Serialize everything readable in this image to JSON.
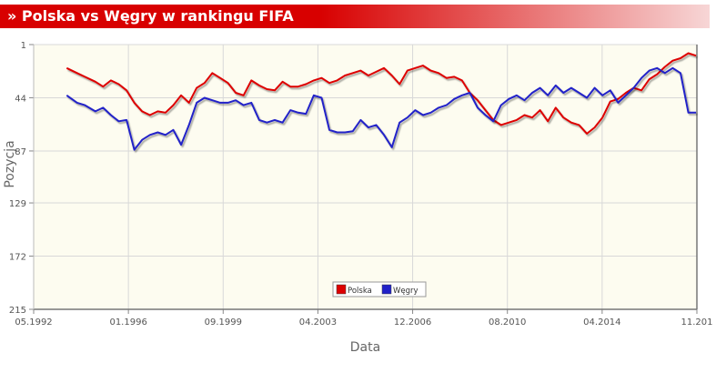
{
  "header": {
    "title": "» Polska vs Węgry w rankingu FIFA"
  },
  "chart_data": {
    "type": "line",
    "title": "Polska vs Węgry w rankingu FIFA",
    "xlabel": "Data",
    "ylabel": "Pozycja",
    "x_ticks": [
      "05.1992",
      "01.1996",
      "09.1999",
      "04.2003",
      "12.2006",
      "08.2010",
      "04.2014",
      "11.201"
    ],
    "y_ticks": [
      1,
      44,
      87,
      129,
      172,
      215
    ],
    "ylim": [
      1,
      215
    ],
    "y_inverted": true,
    "xlim": [
      1992.33,
      2017.83
    ],
    "grid": true,
    "legend_position": "bottom-center",
    "colors": {
      "Polska": "#dd0000",
      "Węgry": "#2020c8",
      "plot_bg": "#fdfcf0",
      "grid": "#d8d8d8"
    },
    "series": [
      {
        "name": "Polska",
        "x": [
          1993.6,
          1994.0,
          1994.3,
          1994.7,
          1995.0,
          1995.3,
          1995.6,
          1995.9,
          1996.2,
          1996.5,
          1996.8,
          1997.1,
          1997.4,
          1997.7,
          1998.0,
          1998.3,
          1998.6,
          1998.9,
          1999.2,
          1999.5,
          1999.8,
          2000.1,
          2000.4,
          2000.7,
          2001.0,
          2001.3,
          2001.6,
          2001.9,
          2002.2,
          2002.5,
          2002.8,
          2003.1,
          2003.4,
          2003.7,
          2004.0,
          2004.3,
          2004.6,
          2004.9,
          2005.2,
          2005.5,
          2005.8,
          2006.1,
          2006.4,
          2006.7,
          2007.0,
          2007.3,
          2007.6,
          2007.9,
          2008.2,
          2008.5,
          2008.8,
          2009.1,
          2009.4,
          2009.7,
          2010.0,
          2010.3,
          2010.6,
          2010.9,
          2011.2,
          2011.5,
          2011.8,
          2012.1,
          2012.4,
          2012.7,
          2013.0,
          2013.3,
          2013.6,
          2013.9,
          2014.2,
          2014.5,
          2014.8,
          2015.1,
          2015.4,
          2015.7,
          2016.0,
          2016.3,
          2016.6,
          2016.9,
          2017.2,
          2017.5,
          2017.8
        ],
        "values": [
          20,
          24,
          27,
          31,
          35,
          30,
          33,
          38,
          48,
          55,
          58,
          55,
          56,
          50,
          42,
          48,
          36,
          32,
          24,
          28,
          32,
          40,
          42,
          30,
          34,
          37,
          38,
          31,
          35,
          35,
          33,
          30,
          28,
          32,
          30,
          26,
          24,
          22,
          26,
          23,
          20,
          26,
          33,
          22,
          20,
          18,
          22,
          24,
          28,
          27,
          30,
          40,
          46,
          54,
          62,
          66,
          64,
          62,
          58,
          60,
          54,
          63,
          52,
          60,
          64,
          66,
          73,
          68,
          60,
          47,
          45,
          40,
          36,
          38,
          29,
          25,
          19,
          14,
          12,
          8,
          10
        ]
      },
      {
        "name": "Węgry",
        "x": [
          1993.6,
          1994.0,
          1994.3,
          1994.7,
          1995.0,
          1995.3,
          1995.6,
          1995.9,
          1996.2,
          1996.5,
          1996.8,
          1997.1,
          1997.4,
          1997.7,
          1998.0,
          1998.3,
          1998.6,
          1998.9,
          1999.2,
          1999.5,
          1999.8,
          2000.1,
          2000.4,
          2000.7,
          2001.0,
          2001.3,
          2001.6,
          2001.9,
          2002.2,
          2002.5,
          2002.8,
          2003.1,
          2003.4,
          2003.7,
          2004.0,
          2004.3,
          2004.6,
          2004.9,
          2005.2,
          2005.5,
          2005.8,
          2006.1,
          2006.4,
          2006.7,
          2007.0,
          2007.3,
          2007.6,
          2007.9,
          2008.2,
          2008.5,
          2008.8,
          2009.1,
          2009.4,
          2009.7,
          2010.0,
          2010.3,
          2010.6,
          2010.9,
          2011.2,
          2011.5,
          2011.8,
          2012.1,
          2012.4,
          2012.7,
          2013.0,
          2013.3,
          2013.6,
          2013.9,
          2014.2,
          2014.5,
          2014.8,
          2015.1,
          2015.4,
          2015.7,
          2016.0,
          2016.3,
          2016.6,
          2016.9,
          2017.2,
          2017.5,
          2017.8
        ],
        "values": [
          42,
          48,
          50,
          55,
          52,
          58,
          63,
          62,
          86,
          78,
          74,
          72,
          74,
          70,
          82,
          66,
          48,
          44,
          46,
          48,
          48,
          46,
          50,
          48,
          62,
          64,
          62,
          64,
          54,
          56,
          57,
          42,
          44,
          70,
          72,
          72,
          71,
          62,
          68,
          66,
          74,
          84,
          64,
          60,
          54,
          58,
          56,
          52,
          50,
          45,
          42,
          40,
          52,
          58,
          63,
          50,
          45,
          42,
          46,
          40,
          36,
          42,
          34,
          40,
          36,
          40,
          44,
          36,
          42,
          38,
          48,
          42,
          36,
          28,
          22,
          20,
          24,
          20,
          24,
          56,
          56
        ]
      }
    ]
  }
}
